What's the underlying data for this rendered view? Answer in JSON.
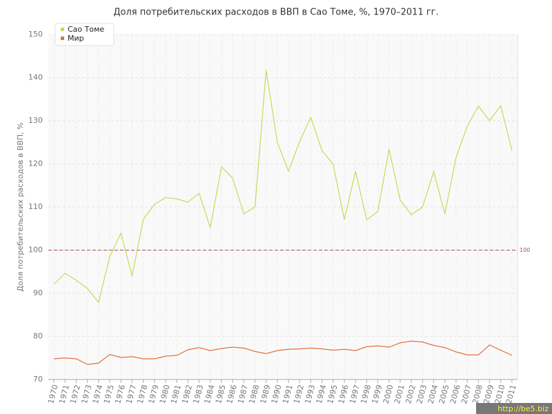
{
  "chart_data": {
    "type": "line",
    "title": "Доля потребительских расходов в ВВП в Сао Томе, %, 1970–2011 гг.",
    "y_label": "Доля потребительских расходов в ВВП, %",
    "categories": [
      "1970",
      "1971",
      "1972",
      "1973",
      "1974",
      "1975",
      "1976",
      "1977",
      "1978",
      "1979",
      "1980",
      "1981",
      "1982",
      "1983",
      "1984",
      "1985",
      "1986",
      "1987",
      "1988",
      "1989",
      "1990",
      "1991",
      "1992",
      "1993",
      "1994",
      "1995",
      "1996",
      "1997",
      "1998",
      "1999",
      "2000",
      "2001",
      "2002",
      "2003",
      "2004",
      "2005",
      "2006",
      "2007",
      "2008",
      "2009",
      "2010",
      "2011"
    ],
    "series": [
      {
        "name": "Сао Томе",
        "color": "#c2dc55",
        "values": [
          92.1,
          94.6,
          93,
          91.1,
          87.9,
          98.5,
          103.9,
          94,
          107.1,
          110.6,
          112.2,
          111.9,
          111.1,
          113.2,
          105.2,
          119.3,
          116.7,
          108.4,
          110,
          141.7,
          125,
          118.3,
          125.2,
          130.8,
          123.1,
          119.9,
          107.1,
          118.3,
          107,
          109,
          123.4,
          111.6,
          108.2,
          110,
          118.2,
          108.4,
          121.5,
          128.7,
          133.4,
          130,
          133.5,
          123.1
        ]
      },
      {
        "name": "Мир",
        "color": "#e2703f",
        "values": [
          74.8,
          75,
          74.8,
          73.5,
          73.8,
          75.8,
          75.1,
          75.3,
          74.8,
          74.8,
          75.4,
          75.6,
          76.9,
          77.4,
          76.7,
          77.2,
          77.5,
          77.3,
          76.5,
          76,
          76.7,
          77,
          77.1,
          77.3,
          77.1,
          76.8,
          77,
          76.7,
          77.6,
          77.8,
          77.5,
          78.5,
          78.9,
          78.7,
          77.9,
          77.4,
          76.4,
          75.7,
          75.7,
          78,
          76.8,
          75.6
        ]
      }
    ],
    "ylim": [
      70,
      150
    ],
    "yticks": [
      70,
      80,
      90,
      100,
      110,
      120,
      130,
      140,
      150
    ],
    "grid": true,
    "reference_line": 100,
    "reference_color": "#a05060",
    "legend": "top-left",
    "watermark": "http://be5.biz"
  }
}
